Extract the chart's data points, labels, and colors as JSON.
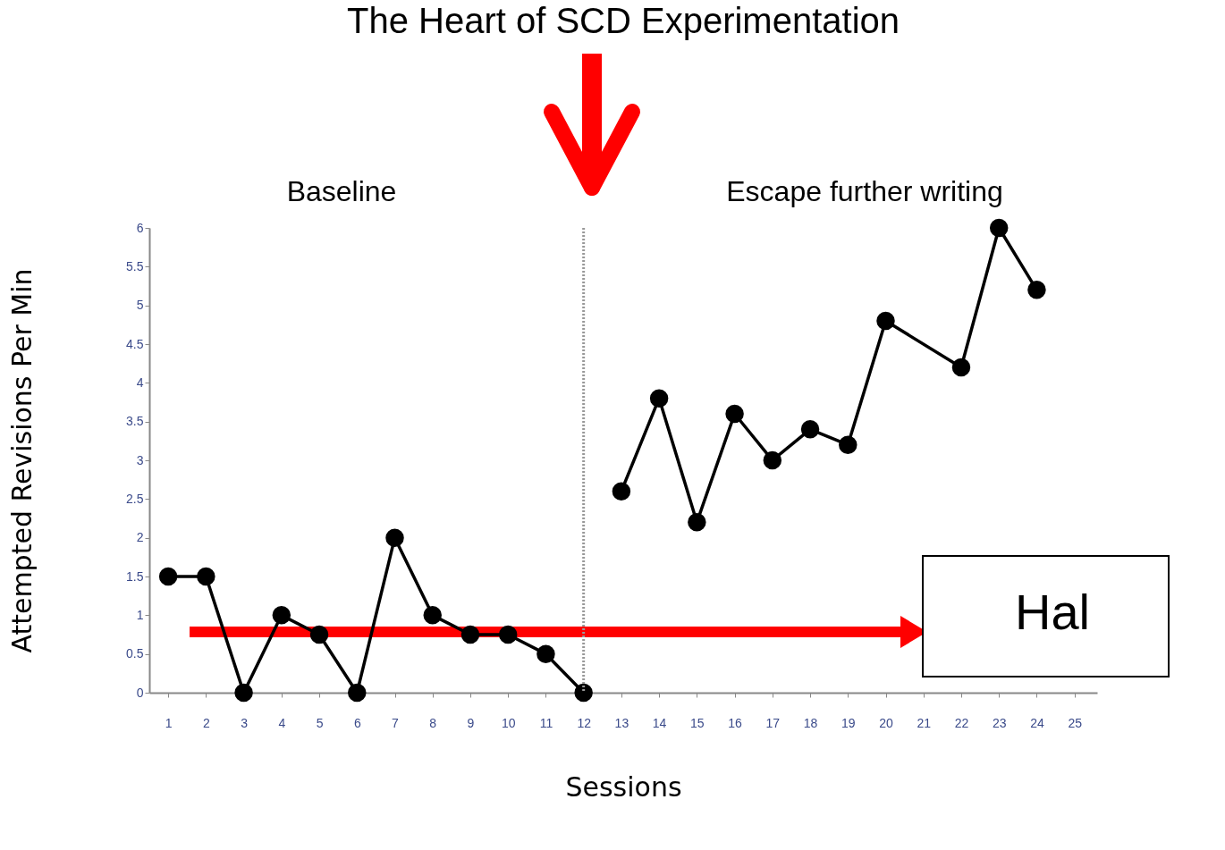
{
  "chart_data": {
    "type": "line",
    "title": "The Heart of SCD Experimentation",
    "xlabel": "Sessions",
    "ylabel": "Attempted Revisions Per Min",
    "series": [
      {
        "color": "#000000",
        "x": [
          1,
          2,
          3,
          4,
          5,
          6,
          7,
          8,
          9,
          10,
          11,
          12
        ],
        "values": [
          1.5,
          1.5,
          0,
          1,
          0.75,
          0,
          2,
          1,
          0.75,
          0.75,
          0.5,
          0
        ]
      },
      {
        "color": "#000000",
        "x": [
          13,
          14,
          15,
          16,
          17,
          18,
          19,
          20,
          22,
          23,
          24
        ],
        "values": [
          2.6,
          3.8,
          2.2,
          3.6,
          3.0,
          3.4,
          3.2,
          4.8,
          4.2,
          6.0,
          5.2
        ]
      }
    ],
    "xlim": [
      0.5,
      25.6
    ],
    "xticks": [
      1,
      2,
      3,
      4,
      5,
      6,
      7,
      8,
      9,
      10,
      11,
      12,
      13,
      14,
      15,
      16,
      17,
      18,
      19,
      20,
      21,
      22,
      23,
      24,
      25
    ],
    "ylim": [
      0,
      6
    ],
    "yticks": [
      0,
      0.5,
      1,
      1.5,
      2,
      2.5,
      3,
      3.5,
      4,
      4.5,
      5,
      5.5,
      6
    ],
    "ref_lines": [
      {
        "axis": "x",
        "value": 12,
        "color": "#999999",
        "line_style": "dotted"
      }
    ],
    "annotations": [
      "Baseline",
      "Escape further writing",
      "Hal"
    ],
    "grid": false,
    "marker": "circle",
    "line_style": "solid"
  }
}
